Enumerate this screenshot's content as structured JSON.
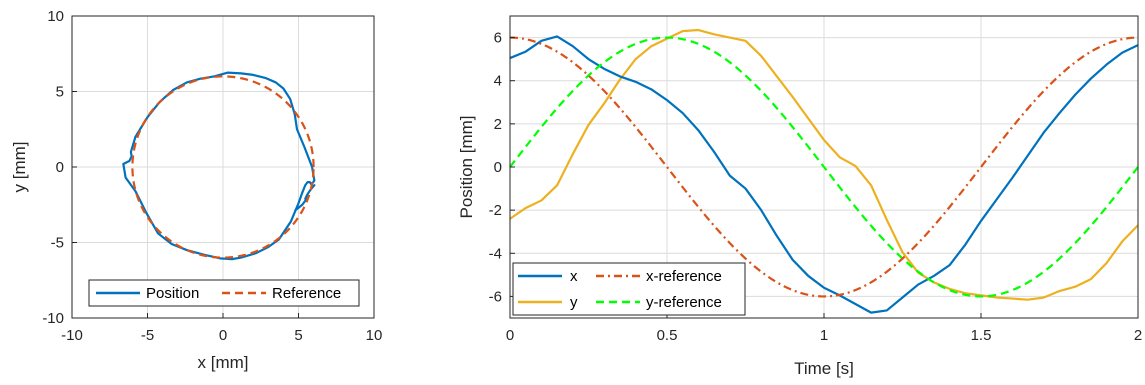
{
  "chart_data": [
    {
      "type": "line",
      "xlabel": "x [mm]",
      "ylabel": "y [mm]",
      "xlim": [
        -10,
        10
      ],
      "ylim": [
        -10,
        10
      ],
      "xticks": [
        "-10",
        "-5",
        "0",
        "5",
        "10"
      ],
      "yticks": [
        "-10",
        "-5",
        "0",
        "5",
        "10"
      ],
      "grid": true,
      "legend": {
        "placement": "bottom",
        "orientation": "horizontal"
      },
      "series": [
        {
          "name": "Position",
          "color": "#0072BD",
          "style": "solid",
          "x": [
            5.9,
            6.05,
            5.9,
            5.4,
            4.9,
            4.75,
            4.45,
            4.0,
            3.5,
            2.8,
            2.0,
            1.2,
            0.3,
            -0.6,
            -1.5,
            -2.4,
            -3.3,
            -4.2,
            -5.0,
            -5.8,
            -6.1,
            -6.05,
            -6.2,
            -6.6,
            -6.45,
            -5.8,
            -5.1,
            -4.3,
            -3.4,
            -2.4,
            -1.3,
            -0.2,
            0.6,
            1.2,
            2.2,
            3.0,
            3.7,
            4.5,
            5.0,
            5.25,
            5.45,
            5.6,
            5.75,
            5.95,
            6.05,
            5.8,
            5.6,
            5.45,
            5.55,
            5.25,
            4.75
          ],
          "y": [
            -1.1,
            -0.9,
            0.0,
            1.3,
            2.5,
            3.5,
            4.5,
            5.2,
            5.6,
            5.9,
            6.1,
            6.2,
            6.25,
            6.0,
            5.85,
            5.6,
            5.1,
            4.3,
            3.3,
            2.0,
            1.0,
            0.7,
            0.4,
            0.2,
            -0.7,
            -1.6,
            -3.0,
            -4.4,
            -5.1,
            -5.5,
            -5.8,
            -6.05,
            -6.1,
            -6.0,
            -5.7,
            -5.3,
            -4.8,
            -3.6,
            -2.4,
            -1.7,
            -1.2,
            -1.0,
            -1.0,
            -1.3,
            -1.2,
            -1.5,
            -1.8,
            -2.1,
            -2.1,
            -2.5,
            -2.9
          ]
        },
        {
          "name": "Reference",
          "color": "#D95319",
          "style": "dashed",
          "circle_radius": 6
        }
      ]
    },
    {
      "type": "line",
      "xlabel": "Time [s]",
      "ylabel": "Position [mm]",
      "xlim": [
        0,
        2
      ],
      "ylim": [
        -7,
        7
      ],
      "xticks": [
        "0",
        "0.5",
        "1",
        "1.5",
        "2"
      ],
      "yticks": [
        "-6",
        "-4",
        "-2",
        "0",
        "2",
        "4",
        "6"
      ],
      "grid": true,
      "legend": {
        "placement": "bottom-left",
        "columns": 2
      },
      "t": [
        0,
        0.05,
        0.1,
        0.15,
        0.2,
        0.25,
        0.3,
        0.35,
        0.4,
        0.45,
        0.5,
        0.55,
        0.6,
        0.65,
        0.7,
        0.75,
        0.8,
        0.85,
        0.9,
        0.95,
        1.0,
        1.05,
        1.1,
        1.15,
        1.2,
        1.25,
        1.3,
        1.35,
        1.4,
        1.45,
        1.5,
        1.55,
        1.6,
        1.65,
        1.7,
        1.75,
        1.8,
        1.85,
        1.9,
        1.95,
        2.0
      ],
      "series": [
        {
          "name": "x",
          "color": "#0072BD",
          "style": "solid",
          "values": [
            5.05,
            5.35,
            5.85,
            6.05,
            5.6,
            5.0,
            4.55,
            4.2,
            3.95,
            3.6,
            3.1,
            2.5,
            1.7,
            0.7,
            -0.4,
            -1.0,
            -2.0,
            -3.2,
            -4.3,
            -5.05,
            -5.6,
            -5.95,
            -6.35,
            -6.75,
            -6.65,
            -6.05,
            -5.45,
            -5.05,
            -4.55,
            -3.6,
            -2.5,
            -1.5,
            -0.5,
            0.55,
            1.6,
            2.5,
            3.35,
            4.1,
            4.75,
            5.3,
            5.65
          ]
        },
        {
          "name": "x-reference",
          "color": "#D95319",
          "style": "dashdot",
          "amplitude": 6,
          "function": "6*cos(pi*t)"
        },
        {
          "name": "y",
          "color": "#EDB120",
          "style": "solid",
          "values": [
            -2.4,
            -1.9,
            -1.55,
            -0.85,
            0.6,
            1.95,
            2.95,
            4.05,
            5.0,
            5.6,
            5.95,
            6.3,
            6.35,
            6.15,
            6.0,
            5.85,
            5.15,
            4.2,
            3.25,
            2.25,
            1.25,
            0.45,
            0.05,
            -0.85,
            -2.45,
            -3.95,
            -4.9,
            -5.35,
            -5.65,
            -5.85,
            -5.95,
            -6.05,
            -6.1,
            -6.15,
            -6.05,
            -5.75,
            -5.55,
            -5.2,
            -4.45,
            -3.45,
            -2.7
          ]
        },
        {
          "name": "y-reference",
          "color": "#00FF00",
          "style": "dashed",
          "amplitude": 6,
          "function": "6*sin(pi*t)"
        }
      ]
    }
  ]
}
